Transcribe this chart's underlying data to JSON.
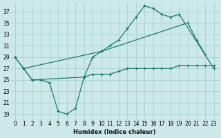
{
  "bg_color": "#cce8e8",
  "grid_color": "#a8d0d0",
  "line_color": "#1a7a6e",
  "xlabel": "Humidex (Indice chaleur)",
  "yticks": [
    19,
    21,
    23,
    25,
    27,
    29,
    31,
    33,
    35,
    37
  ],
  "xlim": [
    -0.5,
    23.5
  ],
  "ylim": [
    18.0,
    38.5
  ],
  "line1_x": [
    0,
    1,
    10,
    11,
    12,
    13,
    14,
    15,
    16,
    17,
    18,
    19,
    23
  ],
  "line1_y": [
    29,
    27,
    30,
    31,
    32,
    34,
    36,
    38,
    37.5,
    36.5,
    36,
    36.5,
    27
  ],
  "line2_x": [
    0,
    1,
    2,
    3,
    4,
    5,
    6,
    7,
    8,
    9,
    10,
    20,
    21,
    22
  ],
  "line2_y": [
    29,
    27,
    25,
    25,
    24.5,
    19.5,
    19,
    20,
    25.5,
    29,
    30,
    35,
    32,
    29.5
  ],
  "line3_x": [
    1,
    2,
    8,
    9,
    10,
    11,
    12,
    13,
    14,
    15,
    16,
    17,
    18,
    19,
    20,
    21,
    22,
    23
  ],
  "line3_y": [
    27,
    25,
    25.5,
    26,
    26,
    26,
    26.5,
    27,
    27,
    27,
    27,
    27,
    27,
    27.5,
    27.5,
    27.5,
    27.5,
    27.5
  ],
  "xlabel_fontsize": 6,
  "tick_fontsize": 5.5
}
